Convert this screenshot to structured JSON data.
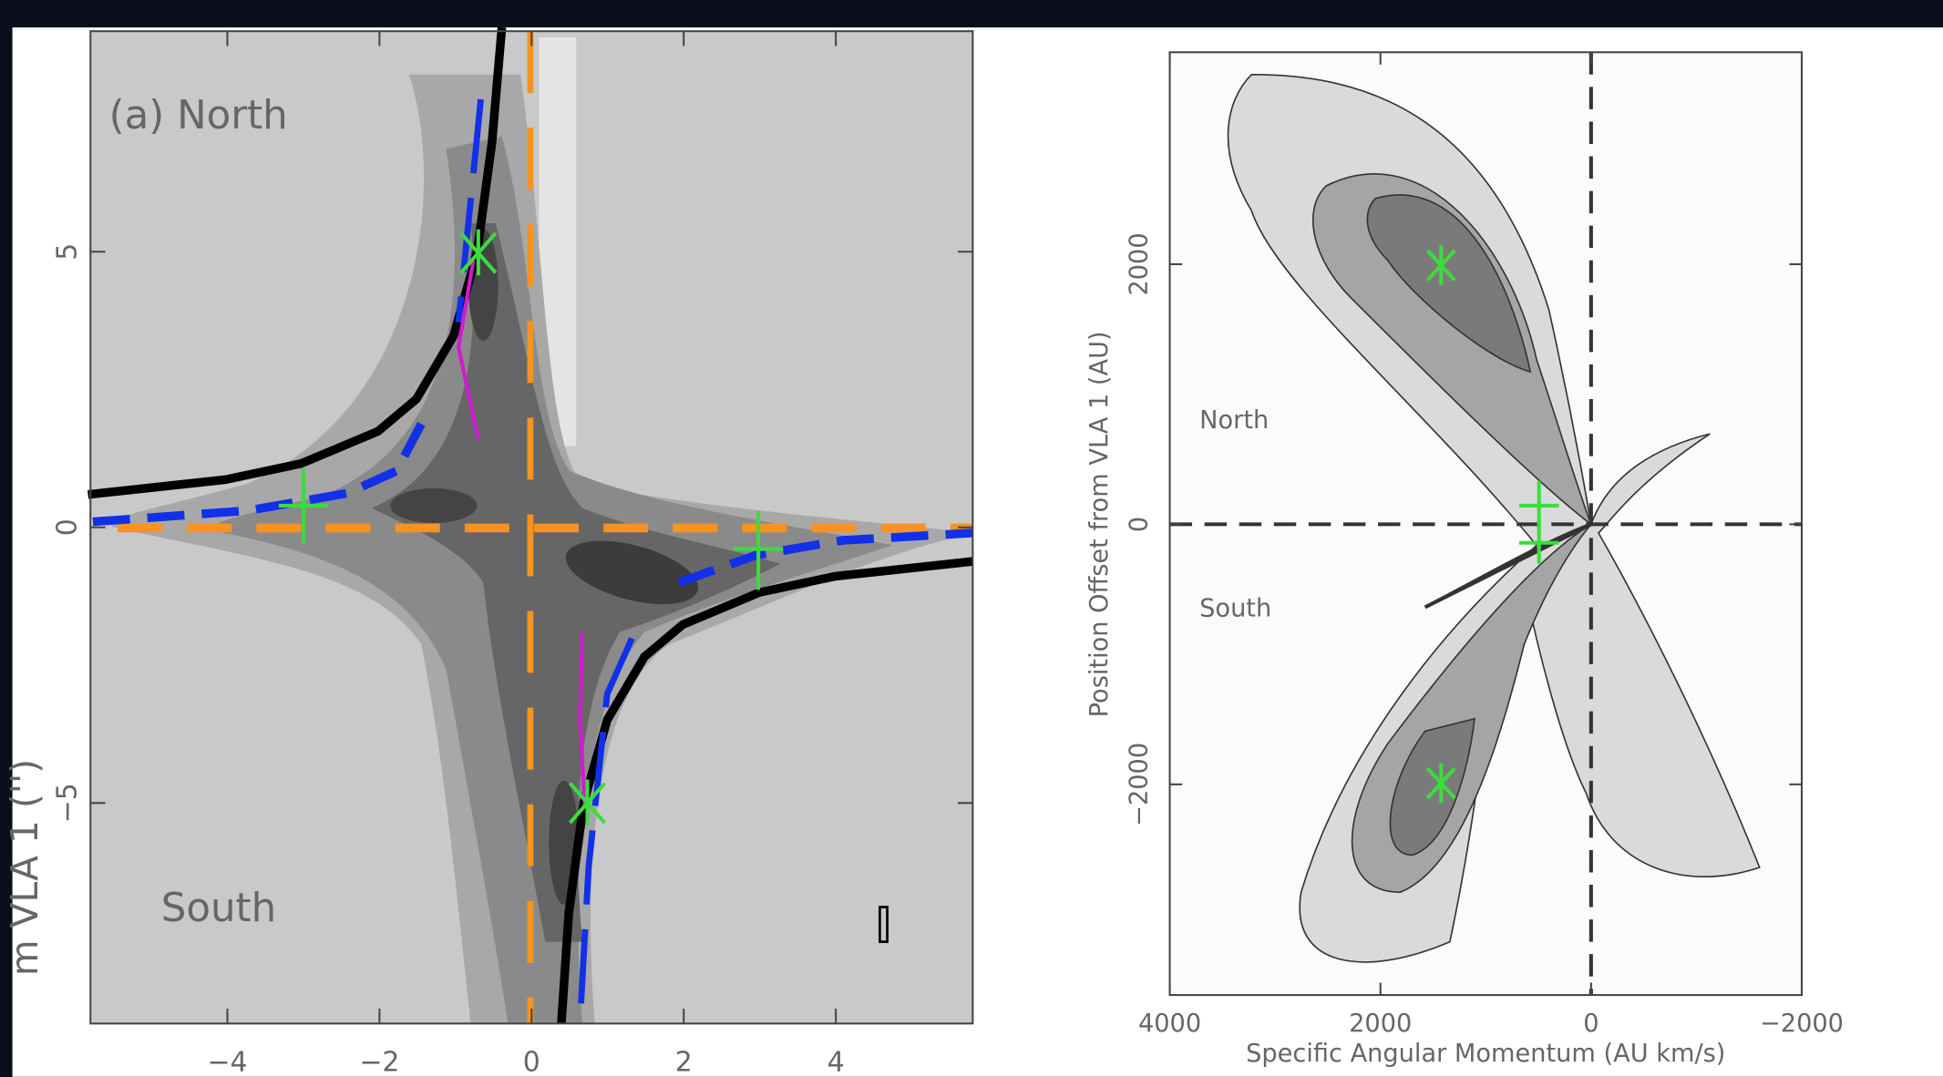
{
  "chart_data": [
    {
      "type": "contour",
      "xlim": [
        -5.8,
        5.8
      ],
      "ylim": [
        -9,
        9
      ],
      "xticks": [
        {
          "value": -4,
          "label": "−4"
        },
        {
          "value": -2,
          "label": "−2"
        },
        0,
        2,
        4
      ],
      "yticks": [
        {
          "value": -5,
          "label": "−5"
        },
        0,
        5
      ],
      "y_label": "m VLA 1 ('')",
      "annotations": [
        "(a) North",
        "South"
      ]
    },
    {
      "type": "contour",
      "xlim": [
        4000,
        -2000
      ],
      "ylim": [
        -3620,
        3630
      ],
      "xticks": [
        4000,
        2000,
        0,
        {
          "value": -2000,
          "label": "−2000"
        }
      ],
      "yticks": [
        {
          "value": -2000,
          "label": "−2000"
        },
        0,
        2000
      ],
      "x_label": "Specific Angular Momentum (AU km/s)",
      "y_label": "Position Offset from VLA 1 (AU)",
      "annotations": [
        "North",
        "South"
      ]
    }
  ]
}
